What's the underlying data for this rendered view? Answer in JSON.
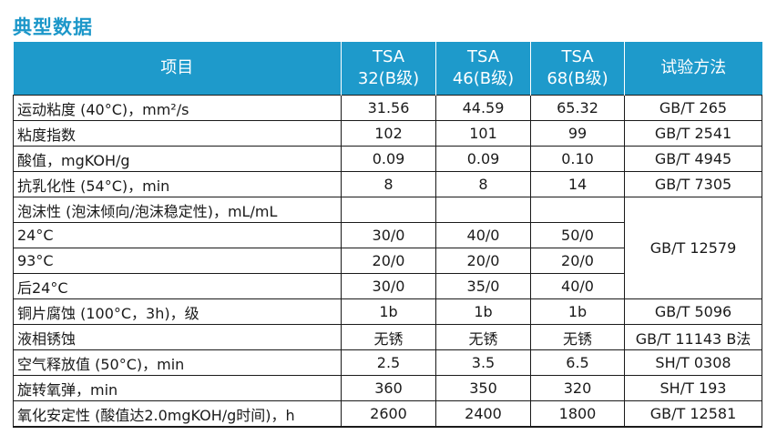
{
  "title": "典型数据",
  "table": {
    "headers": {
      "item": "项目",
      "grades": [
        {
          "line1": "TSA",
          "line2": "32(B级)"
        },
        {
          "line1": "TSA",
          "line2": "46(B级)"
        },
        {
          "line1": "TSA",
          "line2": "68(B级)"
        }
      ],
      "method": "试验方法"
    },
    "rows": [
      {
        "name": "运动粘度 (40°C)，mm²/s",
        "values": [
          "31.56",
          "44.59",
          "65.32"
        ],
        "method": "GB/T 265"
      },
      {
        "name": "粘度指数",
        "values": [
          "102",
          "101",
          "99"
        ],
        "method": "GB/T 2541"
      },
      {
        "name": "酸值，mgKOH/g",
        "values": [
          "0.09",
          "0.09",
          "0.10"
        ],
        "method": "GB/T 4945"
      },
      {
        "name": "抗乳化性 (54°C)，min",
        "values": [
          "8",
          "8",
          "14"
        ],
        "method": "GB/T 7305"
      },
      {
        "name": "泡沫性 (泡沫倾向/泡沫稳定性)，mL/mL",
        "values": [
          "",
          "",
          ""
        ],
        "method": "GB/T 12579"
      },
      {
        "name": "24°C",
        "values": [
          "30/0",
          "40/0",
          "50/0"
        ]
      },
      {
        "name": "93°C",
        "values": [
          "20/0",
          "20/0",
          "20/0"
        ]
      },
      {
        "name": "后24°C",
        "values": [
          "30/0",
          "35/0",
          "40/0"
        ]
      },
      {
        "name": "铜片腐蚀 (100°C，3h)，级",
        "values": [
          "1b",
          "1b",
          "1b"
        ],
        "method": "GB/T 5096"
      },
      {
        "name": "液相锈蚀",
        "values": [
          "无锈",
          "无锈",
          "无锈"
        ],
        "method": "GB/T 11143 B法"
      },
      {
        "name": "空气释放值 (50°C)，min",
        "values": [
          "2.5",
          "3.5",
          "6.5"
        ],
        "method": "SH/T 0308"
      },
      {
        "name": "旋转氧弹，min",
        "values": [
          "360",
          "350",
          "320"
        ],
        "method": "SH/T 193"
      },
      {
        "name": "氧化安定性 (酸值达2.0mgKOH/g时间)，h",
        "values": [
          "2600",
          "2400",
          "1800"
        ],
        "method": "GB/T 12581"
      }
    ]
  }
}
